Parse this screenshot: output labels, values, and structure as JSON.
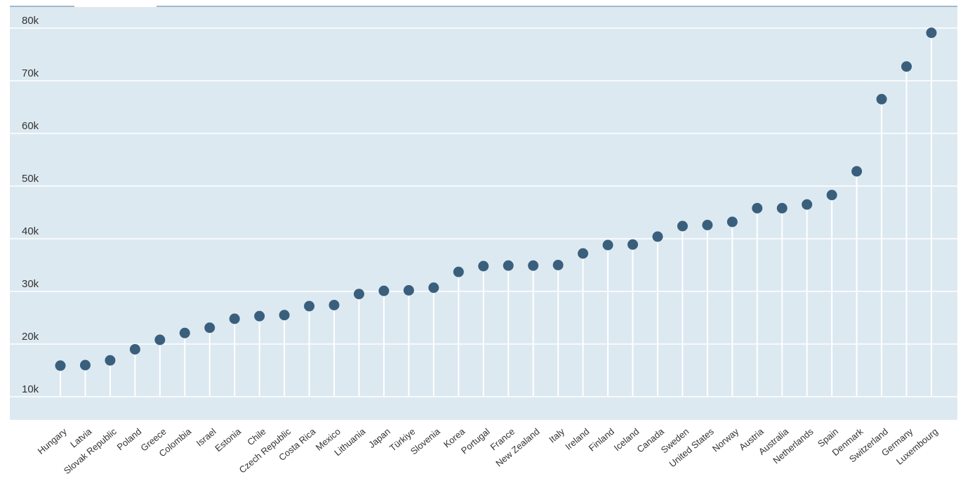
{
  "colors": {
    "plot_background": "#dde9f1",
    "gridline": "#ffffff",
    "stem": "#ffffff",
    "marker": "#3a5f7d",
    "top_rule": "#5b7f9c",
    "tab_active": "#ffffff"
  },
  "chart_data": {
    "type": "scatter",
    "style": "lollipop",
    "title": "",
    "xlabel": "",
    "ylabel": "",
    "ylim": [
      5000,
      84000
    ],
    "yticks": [
      {
        "value": 10000,
        "label": "10k"
      },
      {
        "value": 20000,
        "label": "20k"
      },
      {
        "value": 30000,
        "label": "30k"
      },
      {
        "value": 40000,
        "label": "40k"
      },
      {
        "value": 50000,
        "label": "50k"
      },
      {
        "value": 60000,
        "label": "60k"
      },
      {
        "value": 70000,
        "label": "70k"
      },
      {
        "value": 80000,
        "label": "80k"
      }
    ],
    "grid": true,
    "legend": "none",
    "categories": [
      "Hungary",
      "Latvia",
      "Slovak Republic",
      "Poland",
      "Greece",
      "Colombia",
      "Israel",
      "Estonia",
      "Chile",
      "Czech Republic",
      "Costa Rica",
      "Mexico",
      "Lithuania",
      "Japan",
      "Türkiye",
      "Slovenia",
      "Korea",
      "Portugal",
      "France",
      "New Zealand",
      "Italy",
      "Ireland",
      "Finland",
      "Iceland",
      "Canada",
      "Sweden",
      "United States",
      "Norway",
      "Austria",
      "Australia",
      "Netherlands",
      "Spain",
      "Denmark",
      "Switzerland",
      "Germany",
      "Luxembourg"
    ],
    "values": [
      15900,
      16000,
      16900,
      19000,
      20800,
      22100,
      23100,
      24800,
      25300,
      25500,
      27200,
      27400,
      29500,
      30100,
      30200,
      30700,
      33700,
      34800,
      34900,
      34900,
      35000,
      37200,
      38800,
      38900,
      40400,
      42400,
      42600,
      43200,
      45800,
      45800,
      46500,
      48300,
      52800,
      66500,
      72700,
      79100
    ]
  }
}
